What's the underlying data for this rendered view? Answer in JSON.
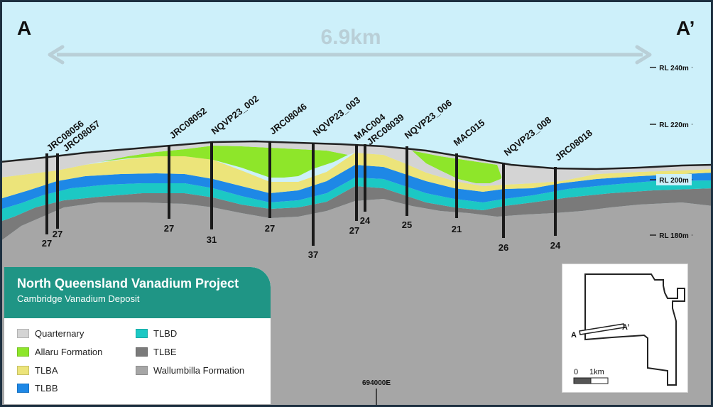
{
  "section": {
    "start_label": "A",
    "end_label": "A’",
    "distance_label": "6.9km",
    "easting_label": "694000E",
    "rl_labels": [
      "RL 240m",
      "RL 220m",
      "RL 200m",
      "RL 180m"
    ]
  },
  "drillholes": [
    {
      "name": "JRC08056",
      "depth": "27"
    },
    {
      "name": "JRC08057",
      "depth": "27"
    },
    {
      "name": "JRC08052",
      "depth": "27"
    },
    {
      "name": "NQVP23_002",
      "depth": "31"
    },
    {
      "name": "JRC08046",
      "depth": "27"
    },
    {
      "name": "NQVP23_003",
      "depth": "37"
    },
    {
      "name": "MAC004",
      "depth": "27"
    },
    {
      "name": "JRC08039",
      "depth": "24"
    },
    {
      "name": "NQVP23_006",
      "depth": "25"
    },
    {
      "name": "MAC015",
      "depth": "21"
    },
    {
      "name": "NQVP23_008",
      "depth": "26"
    },
    {
      "name": "JRC08018",
      "depth": "24"
    }
  ],
  "legend": {
    "title": "North Queensland Vanadium Project",
    "subtitle": "Cambridge Vanadium Deposit",
    "items": [
      {
        "label": "Quarternary",
        "color": "#d4d4d4"
      },
      {
        "label": "Allaru Formation",
        "color": "#8ee62a"
      },
      {
        "label": "TLBA",
        "color": "#ece47a"
      },
      {
        "label": "TLBB",
        "color": "#1e88e6"
      },
      {
        "label": "TLBD",
        "color": "#1cc8c4"
      },
      {
        "label": "TLBE",
        "color": "#7a7a7a"
      },
      {
        "label": "Wallumbilla Formation",
        "color": "#a6a6a6"
      }
    ]
  },
  "inset_map": {
    "start_label": "A",
    "end_label": "A’",
    "scale_start": "0",
    "scale_end": "1km"
  },
  "colors": {
    "sky": "#cdf0fa",
    "frame": "#1d3040",
    "legend_header": "#1f9585",
    "arrow": "#b9cfd7"
  }
}
